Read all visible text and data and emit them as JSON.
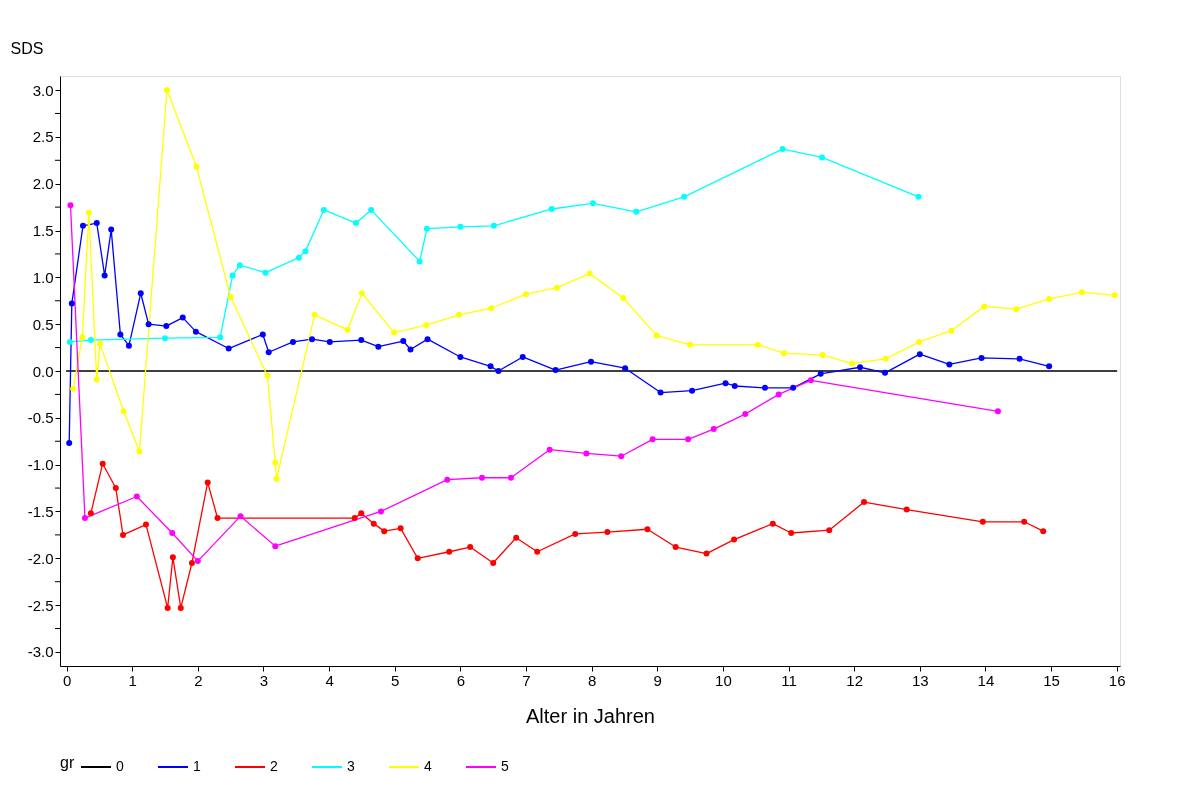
{
  "chart_data": {
    "type": "line",
    "xlabel": "Alter in Jahren",
    "ylabel": "SDS",
    "legend_title": "gr",
    "legend": "bottom",
    "grid": false,
    "marker": "circle",
    "xlim": [
      -0.1,
      16.05
    ],
    "ylim": [
      -3.15,
      3.15
    ],
    "xticks": [
      0,
      1,
      2,
      3,
      4,
      5,
      6,
      7,
      8,
      9,
      10,
      11,
      12,
      13,
      14,
      15,
      16
    ],
    "yticks": [
      {
        "value": -3,
        "label": "-3.0"
      },
      {
        "value": -2.75,
        "label": null
      },
      {
        "value": -2.5,
        "label": "-2.5"
      },
      {
        "value": -2.25,
        "label": null
      },
      {
        "value": -2,
        "label": "-2.0"
      },
      {
        "value": -1.75,
        "label": null
      },
      {
        "value": -1.5,
        "label": "-1.5"
      },
      {
        "value": -1.25,
        "label": null
      },
      {
        "value": -1,
        "label": "-1.0"
      },
      {
        "value": -0.75,
        "label": null
      },
      {
        "value": -0.5,
        "label": "-0.5"
      },
      {
        "value": -0.25,
        "label": null
      },
      {
        "value": 0,
        "label": "0.0"
      },
      {
        "value": 0.25,
        "label": null
      },
      {
        "value": 0.5,
        "label": "0.5"
      },
      {
        "value": 0.75,
        "label": null
      },
      {
        "value": 1,
        "label": "1.0"
      },
      {
        "value": 1.25,
        "label": null
      },
      {
        "value": 1.5,
        "label": "1.5"
      },
      {
        "value": 1.75,
        "label": null
      },
      {
        "value": 2,
        "label": "2.0"
      },
      {
        "value": 2.25,
        "label": null
      },
      {
        "value": 2.5,
        "label": "2.5"
      },
      {
        "value": 2.75,
        "label": null
      },
      {
        "value": 3,
        "label": "3.0"
      }
    ],
    "series": [
      {
        "name": "0",
        "color": "#000000",
        "marker": "none",
        "x": [
          0,
          16
        ],
        "values": [
          0,
          0
        ]
      },
      {
        "name": "1",
        "color": "#0000ff",
        "x": [
          0.04,
          0.08,
          0.25,
          0.46,
          0.58,
          0.68,
          0.82,
          0.95,
          1.13,
          1.25,
          1.52,
          1.77,
          1.97,
          2.47,
          2.99,
          3.08,
          3.45,
          3.74,
          4.01,
          4.49,
          4.75,
          5.13,
          5.24,
          5.5,
          6.0,
          6.46,
          6.58,
          6.95,
          7.45,
          7.99,
          8.51,
          9.05,
          9.53,
          10.04,
          10.18,
          10.64,
          11.07,
          11.49,
          12.09,
          12.47,
          13.0,
          13.45,
          13.94,
          14.52,
          14.97
        ],
        "values": [
          -0.77,
          0.72,
          1.55,
          1.58,
          1.02,
          1.51,
          0.39,
          0.27,
          0.83,
          0.5,
          0.48,
          0.57,
          0.42,
          0.24,
          0.39,
          0.2,
          0.31,
          0.34,
          0.31,
          0.33,
          0.26,
          0.32,
          0.23,
          0.34,
          0.15,
          0.05,
          0.0,
          0.15,
          0.01,
          0.1,
          0.03,
          -0.23,
          -0.21,
          -0.13,
          -0.16,
          -0.18,
          -0.18,
          -0.03,
          0.04,
          -0.02,
          0.18,
          0.07,
          0.14,
          0.13,
          0.05
        ]
      },
      {
        "name": "2",
        "color": "#ff0000",
        "x": [
          0.37,
          0.55,
          0.75,
          0.86,
          1.21,
          1.54,
          1.62,
          1.74,
          1.91,
          2.15,
          2.3,
          4.39,
          4.49,
          4.68,
          4.84,
          5.09,
          5.35,
          5.83,
          6.15,
          6.5,
          6.85,
          7.17,
          7.75,
          8.24,
          8.85,
          9.28,
          9.75,
          10.17,
          10.76,
          11.04,
          11.62,
          12.15,
          12.8,
          13.96,
          14.59,
          14.88
        ],
        "values": [
          -1.52,
          -0.99,
          -1.25,
          -1.75,
          -1.64,
          -2.53,
          -1.99,
          -2.53,
          -2.05,
          -1.19,
          -1.57,
          -1.57,
          -1.52,
          -1.63,
          -1.71,
          -1.68,
          -2.0,
          -1.93,
          -1.88,
          -2.05,
          -1.78,
          -1.93,
          -1.74,
          -1.72,
          -1.69,
          -1.88,
          -1.95,
          -1.8,
          -1.63,
          -1.73,
          -1.7,
          -1.4,
          -1.48,
          -1.61,
          -1.61,
          -1.71
        ]
      },
      {
        "name": "3",
        "color": "#00ffff",
        "x": [
          0.05,
          0.37,
          1.5,
          2.34,
          2.53,
          2.64,
          3.03,
          3.54,
          3.64,
          3.92,
          4.41,
          4.64,
          5.38,
          5.49,
          6.0,
          6.51,
          7.39,
          8.02,
          8.68,
          9.41,
          10.91,
          11.51,
          12.98
        ],
        "values": [
          0.31,
          0.33,
          0.35,
          0.36,
          1.02,
          1.13,
          1.05,
          1.21,
          1.28,
          1.72,
          1.58,
          1.72,
          1.17,
          1.52,
          1.54,
          1.55,
          1.73,
          1.79,
          1.7,
          1.86,
          2.37,
          2.28,
          1.86
        ]
      },
      {
        "name": "4",
        "color": "#ffff00",
        "x": [
          0.1,
          0.24,
          0.34,
          0.46,
          0.51,
          0.87,
          1.11,
          1.53,
          1.98,
          2.5,
          3.06,
          3.18,
          3.2,
          3.78,
          4.28,
          4.5,
          4.99,
          5.48,
          5.98,
          6.47,
          7.0,
          7.47,
          7.97,
          8.48,
          8.99,
          9.5,
          10.53,
          10.93,
          11.52,
          11.97,
          12.48,
          12.99,
          13.48,
          13.98,
          14.47,
          14.97,
          15.47,
          15.97
        ],
        "values": [
          -0.19,
          0.36,
          1.69,
          -0.09,
          0.29,
          -0.43,
          -0.86,
          3.0,
          2.18,
          0.79,
          -0.05,
          -0.98,
          -1.15,
          0.6,
          0.44,
          0.83,
          0.41,
          0.49,
          0.6,
          0.67,
          0.82,
          0.89,
          1.04,
          0.78,
          0.38,
          0.28,
          0.28,
          0.19,
          0.17,
          0.08,
          0.13,
          0.31,
          0.43,
          0.69,
          0.66,
          0.77,
          0.84,
          0.81
        ]
      },
      {
        "name": "5",
        "color": "#ff00ff",
        "x": [
          0.06,
          0.28,
          1.07,
          1.61,
          2.0,
          2.65,
          3.18,
          4.79,
          5.8,
          6.33,
          6.77,
          7.36,
          7.92,
          8.45,
          8.93,
          9.47,
          9.86,
          10.34,
          10.85,
          11.34,
          14.19
        ],
        "values": [
          1.77,
          -1.57,
          -1.34,
          -1.73,
          -2.03,
          -1.55,
          -1.87,
          -1.5,
          -1.16,
          -1.14,
          -1.14,
          -0.84,
          -0.88,
          -0.91,
          -0.73,
          -0.73,
          -0.62,
          -0.46,
          -0.25,
          -0.1,
          -0.43
        ]
      }
    ]
  }
}
